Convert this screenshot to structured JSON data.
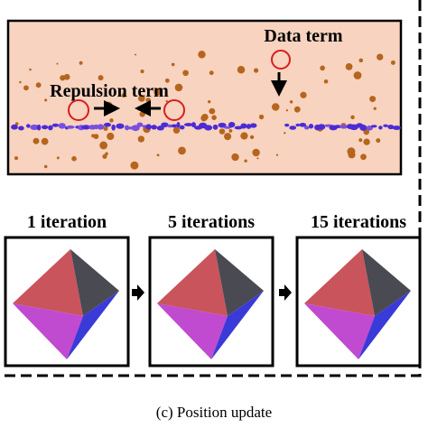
{
  "panel": {
    "data_term": "Data term",
    "repulsion_term": "Repulsion term"
  },
  "steps": [
    {
      "label": "1 iteration"
    },
    {
      "label": "5 iterations"
    },
    {
      "label": "15 iterations"
    }
  ],
  "caption": "(c) Position update"
}
